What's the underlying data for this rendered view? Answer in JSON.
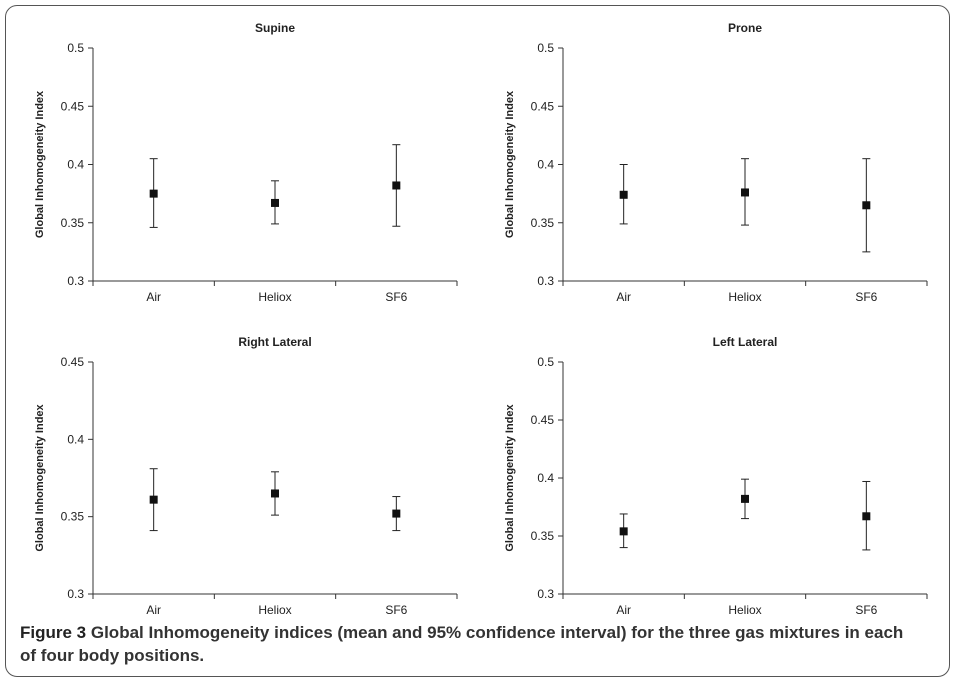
{
  "chart_data": [
    {
      "type": "scatter",
      "title": "Supine",
      "ylabel": "Global Inhomogeneity Index",
      "categories": [
        "Air",
        "Heliox",
        "SF6"
      ],
      "ylim": [
        0.3,
        0.5
      ],
      "yticks": [
        "0.3",
        "0.35",
        "0.4",
        "0.45",
        "0.5"
      ],
      "series": [
        {
          "mean": [
            0.375,
            0.367,
            0.382
          ],
          "lower": [
            0.346,
            0.349,
            0.347
          ],
          "upper": [
            0.405,
            0.386,
            0.417
          ]
        }
      ]
    },
    {
      "type": "scatter",
      "title": "Prone",
      "ylabel": "Global Inhomogeneity Index",
      "categories": [
        "Air",
        "Heliox",
        "SF6"
      ],
      "ylim": [
        0.3,
        0.5
      ],
      "yticks": [
        "0.3",
        "0.35",
        "0.4",
        "0.45",
        "0.5"
      ],
      "series": [
        {
          "mean": [
            0.374,
            0.376,
            0.365
          ],
          "lower": [
            0.349,
            0.348,
            0.325
          ],
          "upper": [
            0.4,
            0.405,
            0.405
          ]
        }
      ]
    },
    {
      "type": "scatter",
      "title": "Right Lateral",
      "ylabel": "Global Inhomogeneity Index",
      "categories": [
        "Air",
        "Heliox",
        "SF6"
      ],
      "ylim": [
        0.3,
        0.45
      ],
      "yticks": [
        "0.3",
        "0.35",
        "0.4",
        "0.45"
      ],
      "series": [
        {
          "mean": [
            0.361,
            0.365,
            0.352
          ],
          "lower": [
            0.341,
            0.351,
            0.341
          ],
          "upper": [
            0.381,
            0.379,
            0.363
          ]
        }
      ]
    },
    {
      "type": "scatter",
      "title": "Left Lateral",
      "ylabel": "Global Inhomogeneity Index",
      "categories": [
        "Air",
        "Heliox",
        "SF6"
      ],
      "ylim": [
        0.3,
        0.5
      ],
      "yticks": [
        "0.3",
        "0.35",
        "0.4",
        "0.45",
        "0.5"
      ],
      "series": [
        {
          "mean": [
            0.354,
            0.382,
            0.367
          ],
          "lower": [
            0.34,
            0.365,
            0.338
          ],
          "upper": [
            0.369,
            0.399,
            0.397
          ]
        }
      ]
    }
  ],
  "caption": {
    "label": "Figure 3",
    "text": "Global Inhomogeneity indices (mean and 95% confidence interval) for the three gas mixtures in each of four body positions."
  }
}
